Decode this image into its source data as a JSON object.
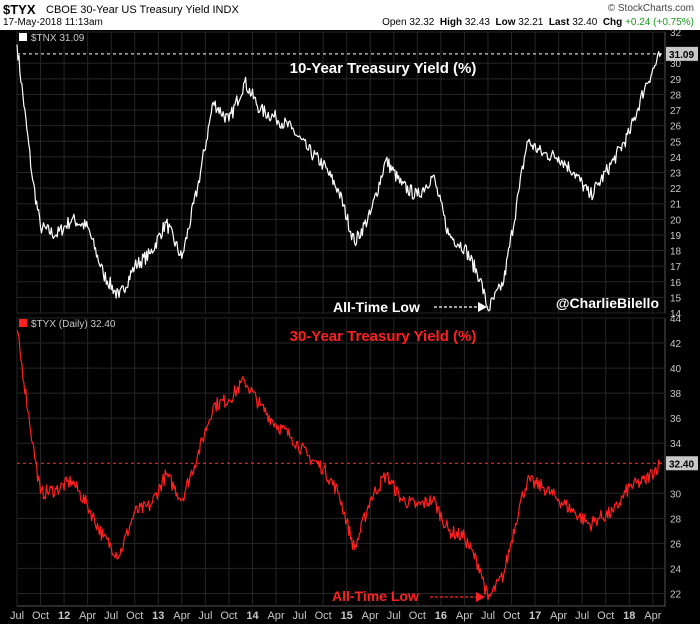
{
  "header": {
    "symbol": "$TYX",
    "name": "CBOE 30-Year US Treasury Yield INDX",
    "datetime": "17-May-2018 11:13am",
    "brand": "© StockCharts.com",
    "open_label": "Open",
    "open": "32.32",
    "high_label": "High",
    "high": "32.43",
    "low_label": "Low",
    "low": "32.21",
    "last_label": "Last",
    "last": "32.40",
    "chg_label": "Chg",
    "chg": "+0.24 (+0.75%)"
  },
  "colors": {
    "tnx_line": "#ffffff",
    "tyx_line": "#ff2020",
    "title_tyx": "#ff2020",
    "last_box": "#c8c8c8",
    "grid": "#262626",
    "axis_text": "#c8c8c8"
  },
  "chart_data": [
    {
      "type": "line",
      "legend": "$TNX 31.09",
      "title": "10-Year Treasury Yield (%)",
      "watermark": "@CharlieBilello",
      "annotation": "All-Time Low",
      "last_value": "31.09",
      "ylim": [
        14,
        32
      ],
      "yticks": [
        14,
        15,
        16,
        17,
        18,
        19,
        20,
        21,
        22,
        23,
        24,
        25,
        26,
        27,
        28,
        29,
        30,
        32
      ],
      "x": [
        "2011-07",
        "2011-09",
        "2011-10",
        "2011-12",
        "2012-02",
        "2012-04",
        "2012-06",
        "2012-08",
        "2012-10",
        "2012-12",
        "2013-02",
        "2013-04",
        "2013-06",
        "2013-08",
        "2013-10",
        "2013-12",
        "2014-02",
        "2014-04",
        "2014-06",
        "2014-08",
        "2014-10",
        "2014-12",
        "2015-02",
        "2015-04",
        "2015-06",
        "2015-08",
        "2015-10",
        "2015-12",
        "2016-02",
        "2016-04",
        "2016-06",
        "2016-07",
        "2016-09",
        "2016-11",
        "2016-12",
        "2017-02",
        "2017-04",
        "2017-06",
        "2017-08",
        "2017-09",
        "2017-11",
        "2018-01",
        "2018-03",
        "2018-05"
      ],
      "y": [
        31.2,
        22.5,
        19.5,
        19.0,
        20.0,
        19.5,
        16.5,
        15.0,
        17.0,
        17.8,
        19.8,
        17.5,
        22.0,
        27.5,
        26.3,
        28.8,
        27.0,
        26.5,
        25.8,
        24.5,
        23.5,
        21.8,
        18.5,
        20.3,
        23.8,
        22.2,
        21.5,
        22.8,
        19.0,
        18.2,
        16.2,
        14.2,
        16.0,
        22.0,
        25.0,
        24.2,
        24.0,
        23.0,
        21.5,
        22.2,
        23.8,
        25.5,
        28.5,
        30.6
      ]
    },
    {
      "type": "line",
      "legend": "$TYX (Daily) 32.40",
      "title": "30-Year Treasury Yield (%)",
      "annotation": "All-Time Low",
      "last_value": "32.40",
      "ylim": [
        21,
        44
      ],
      "yticks": [
        22,
        24,
        26,
        28,
        30,
        34,
        36,
        38,
        40,
        42,
        44
      ],
      "x": [
        "2011-07",
        "2011-09",
        "2011-10",
        "2011-12",
        "2012-02",
        "2012-04",
        "2012-06",
        "2012-08",
        "2012-10",
        "2012-12",
        "2013-02",
        "2013-04",
        "2013-06",
        "2013-08",
        "2013-10",
        "2013-12",
        "2014-02",
        "2014-04",
        "2014-06",
        "2014-08",
        "2014-10",
        "2014-12",
        "2015-02",
        "2015-04",
        "2015-06",
        "2015-08",
        "2015-10",
        "2015-12",
        "2016-02",
        "2016-04",
        "2016-06",
        "2016-07",
        "2016-09",
        "2016-11",
        "2016-12",
        "2017-02",
        "2017-04",
        "2017-06",
        "2017-08",
        "2017-09",
        "2017-11",
        "2018-01",
        "2018-03",
        "2018-05"
      ],
      "y": [
        43.0,
        34.0,
        30.0,
        30.3,
        31.0,
        29.0,
        26.5,
        25.0,
        28.5,
        29.0,
        31.5,
        29.5,
        33.0,
        37.0,
        37.5,
        39.0,
        37.0,
        35.5,
        34.5,
        33.0,
        32.0,
        30.0,
        25.5,
        29.5,
        31.5,
        29.5,
        29.0,
        29.5,
        27.0,
        26.5,
        24.0,
        21.5,
        23.5,
        29.0,
        31.0,
        30.5,
        29.5,
        28.5,
        27.5,
        28.0,
        28.5,
        30.5,
        31.0,
        32.4
      ]
    }
  ],
  "xaxis": {
    "labels": [
      "Jul",
      "Oct",
      "12",
      "Apr",
      "Jul",
      "Oct",
      "13",
      "Apr",
      "Jul",
      "Oct",
      "14",
      "Apr",
      "Jul",
      "Oct",
      "15",
      "Apr",
      "Jul",
      "Oct",
      "16",
      "Apr",
      "Jul",
      "Oct",
      "17",
      "Apr",
      "Jul",
      "Oct",
      "18",
      "Apr"
    ],
    "dates": [
      "2011-07",
      "2011-10",
      "2012-01",
      "2012-04",
      "2012-07",
      "2012-10",
      "2013-01",
      "2013-04",
      "2013-07",
      "2013-10",
      "2014-01",
      "2014-04",
      "2014-07",
      "2014-10",
      "2015-01",
      "2015-04",
      "2015-07",
      "2015-10",
      "2016-01",
      "2016-04",
      "2016-07",
      "2016-10",
      "2017-01",
      "2017-04",
      "2017-07",
      "2017-10",
      "2018-01",
      "2018-04"
    ]
  }
}
